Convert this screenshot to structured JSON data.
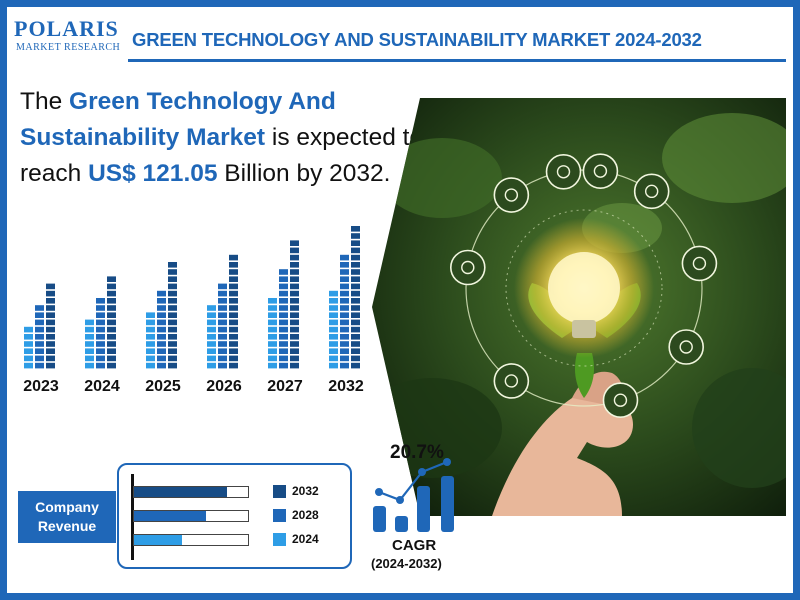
{
  "brand": {
    "name": "POLARIS",
    "subtitle": "MARKET RESEARCH"
  },
  "header": {
    "title": "GREEN TECHNOLOGY AND SUSTAINABILITY MARKET 2024-2032"
  },
  "headline": {
    "prefix": "The ",
    "market_name": "Green Technology And Sustainability Market",
    "middle": " is expected to reach ",
    "value": "US$ 121.05",
    "suffix": " Billion by 2032."
  },
  "company_revenue": {
    "label": "Company Revenue",
    "legend": [
      "2032",
      "2028",
      "2024"
    ]
  },
  "cagr": {
    "value": "20.7%",
    "title": "CAGR",
    "period": "(2024-2032)"
  },
  "icons": [
    "solar-panel-icon",
    "water-drop-icon",
    "fuel-pump-icon",
    "leaf-icon",
    "corn-icon",
    "recycle-icon",
    "oil-rig-icon",
    "sun-icon",
    "wind-turbine-icon"
  ],
  "colors": {
    "brand_blue": "#1f67b8",
    "bar_light": "#2e9de6",
    "bar_mid": "#1f67b8",
    "bar_dark": "#174c86"
  },
  "chart_data": [
    {
      "type": "bar",
      "categories": [
        "2023",
        "2024",
        "2025",
        "2026",
        "2027",
        "2032"
      ],
      "series": [
        {
          "values": [
            6,
            7,
            8,
            9,
            10,
            11
          ]
        },
        {
          "values": [
            9,
            10,
            11,
            12,
            14,
            16
          ]
        },
        {
          "values": [
            12,
            13,
            15,
            16,
            18,
            20
          ]
        }
      ]
    },
    {
      "type": "bar",
      "categories": [
        "2032",
        "2028",
        "2024"
      ],
      "values": [
        0.82,
        0.63,
        0.42
      ]
    }
  ]
}
